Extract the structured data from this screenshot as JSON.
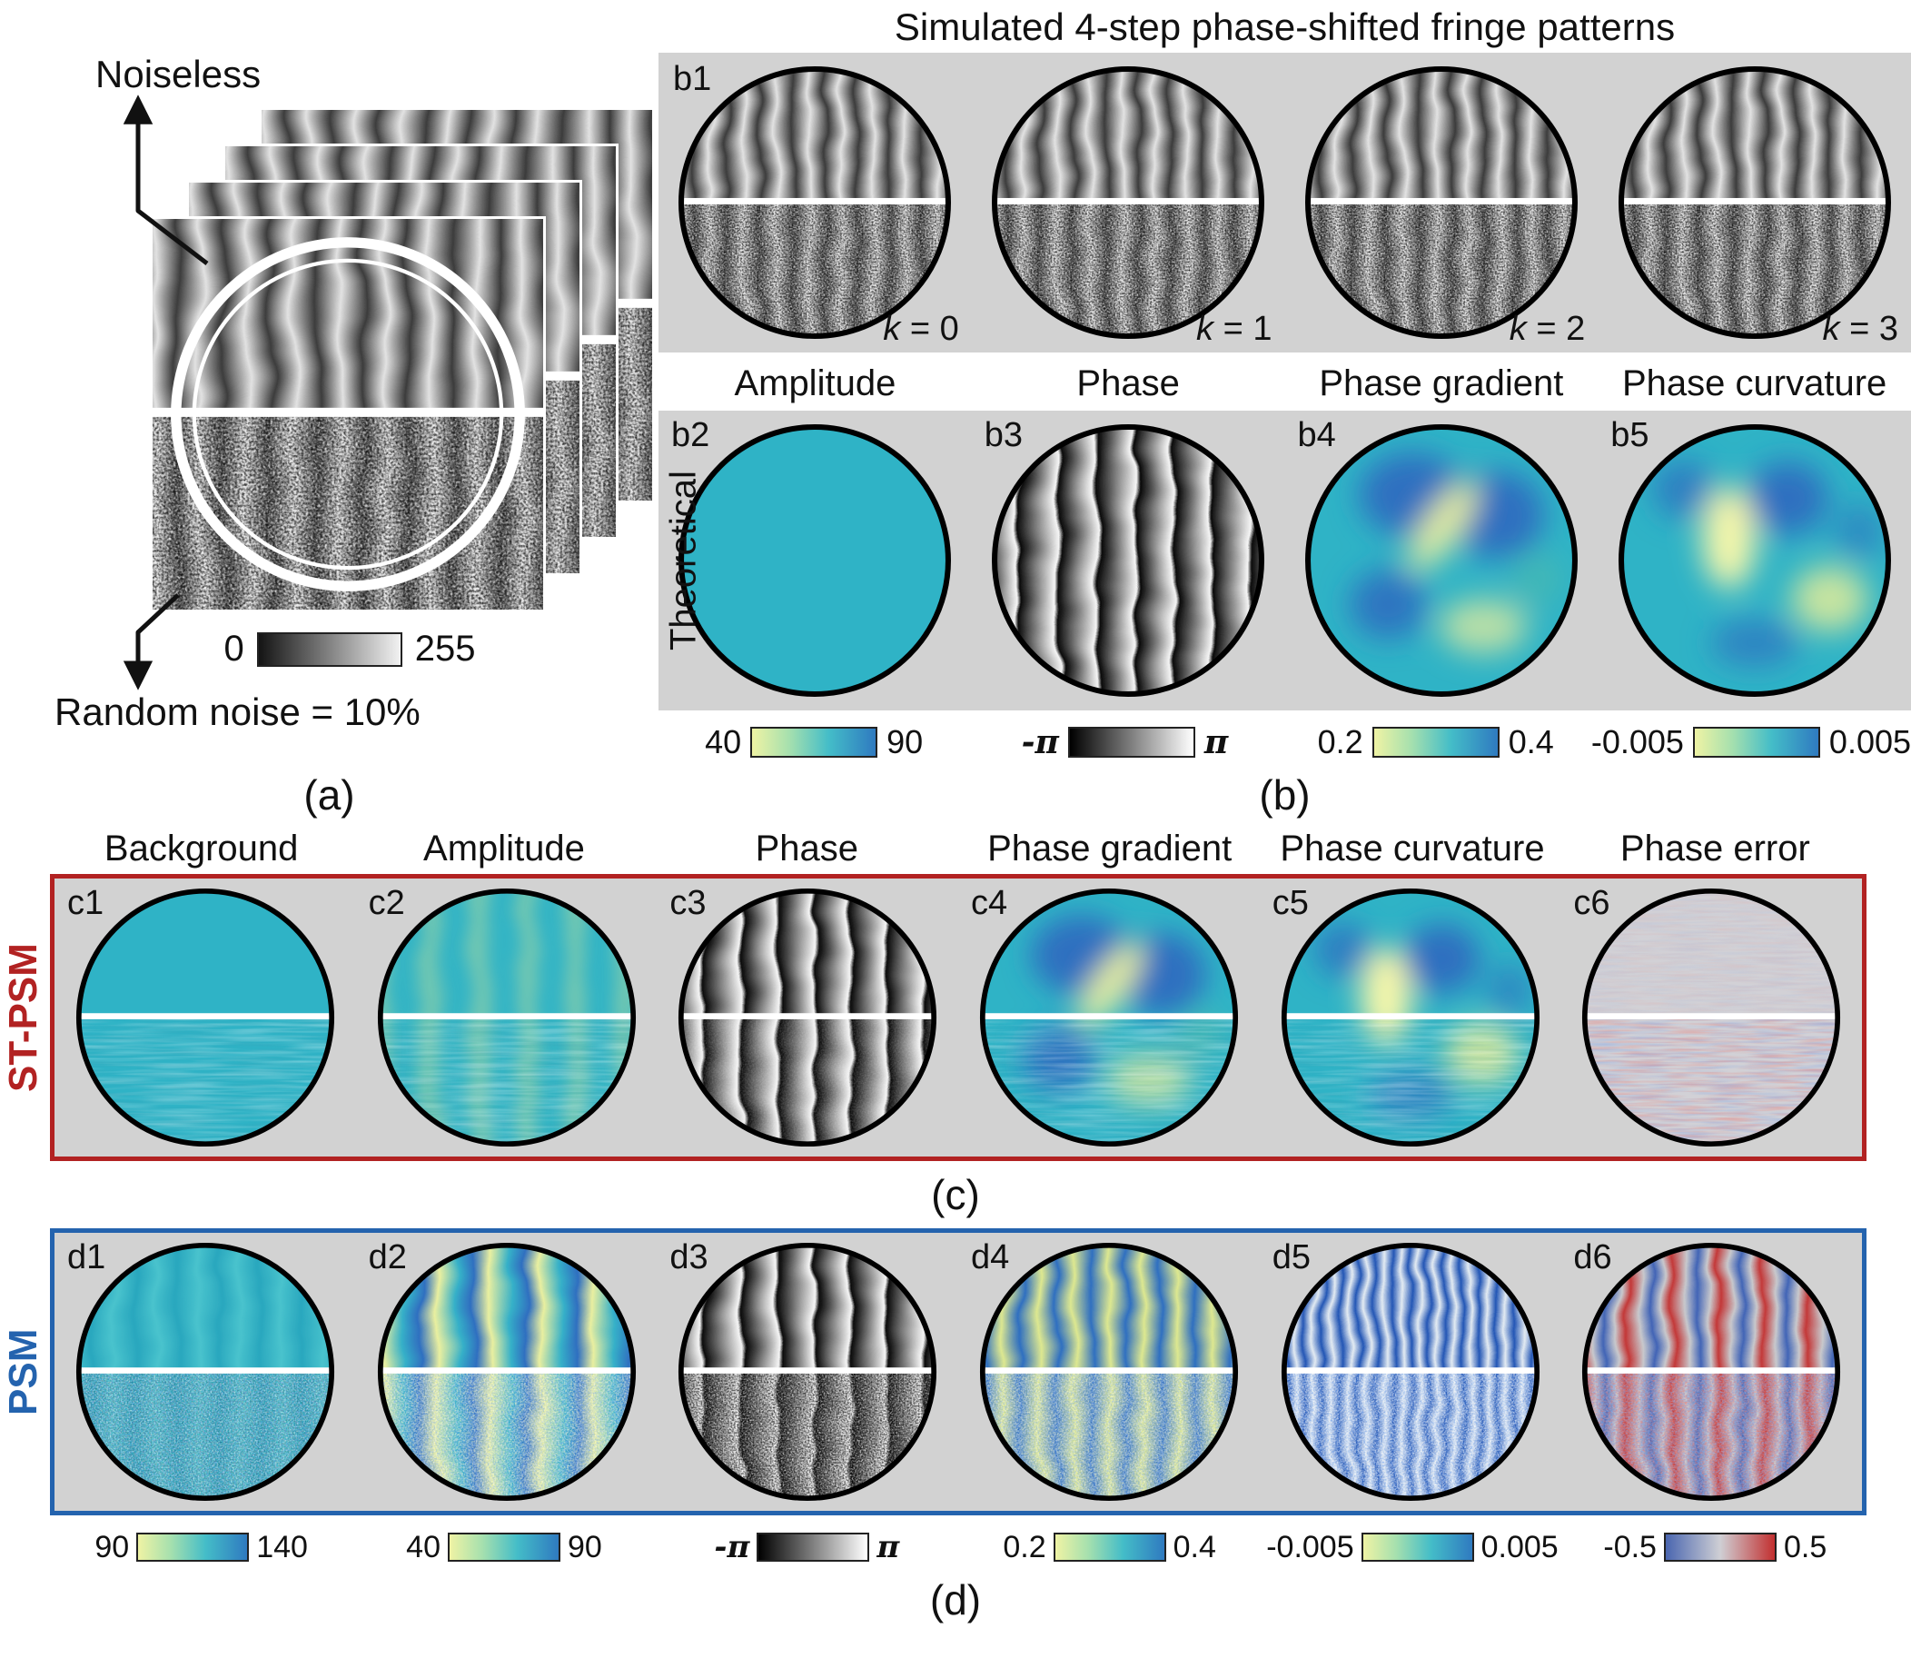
{
  "panel_a": {
    "caption": "(a)",
    "noiseless_label": "Noiseless",
    "noise_label": "Random noise = 10%",
    "colorbar": {
      "min": "0",
      "max": "255"
    }
  },
  "panel_b": {
    "caption": "(b)",
    "title": "Simulated 4-step phase-shifted fringe patterns",
    "box_id": "b1",
    "k_labels": [
      "k = 0",
      "k = 1",
      "k = 2",
      "k = 3"
    ],
    "row_label": "Theoretical",
    "headers": [
      "Amplitude",
      "Phase",
      "Phase gradient",
      "Phase curvature"
    ],
    "cell_ids": [
      "b2",
      "b3",
      "b4",
      "b5"
    ],
    "colorbars": [
      {
        "min": "40",
        "max": "90",
        "map": "teal"
      },
      {
        "min": "-π",
        "max": "π",
        "map": "gray"
      },
      {
        "min": "0.2",
        "max": "0.4",
        "map": "teal"
      },
      {
        "min": "-0.005",
        "max": "0.005",
        "map": "teal"
      }
    ]
  },
  "panel_c": {
    "caption": "(c)",
    "row_label": "ST-PSM",
    "headers": [
      "Background",
      "Amplitude",
      "Phase",
      "Phase gradient",
      "Phase curvature",
      "Phase error"
    ],
    "cell_ids": [
      "c1",
      "c2",
      "c3",
      "c4",
      "c5",
      "c6"
    ]
  },
  "panel_d": {
    "caption": "(d)",
    "row_label": "PSM",
    "cell_ids": [
      "d1",
      "d2",
      "d3",
      "d4",
      "d5",
      "d6"
    ],
    "colorbars": [
      {
        "min": "90",
        "max": "140",
        "map": "teal"
      },
      {
        "min": "40",
        "max": "90",
        "map": "teal"
      },
      {
        "min": "-π",
        "max": "π",
        "map": "gray"
      },
      {
        "min": "0.2",
        "max": "0.4",
        "map": "teal"
      },
      {
        "min": "-0.005",
        "max": "0.005",
        "map": "teal"
      },
      {
        "min": "-0.5",
        "max": "0.5",
        "map": "redblue"
      }
    ]
  },
  "colors": {
    "st_psm_accent": "#b22222",
    "psm_accent": "#2463ae",
    "panel_background": "#d2d2d2",
    "amplitude_teal": "#2fb3c6"
  }
}
